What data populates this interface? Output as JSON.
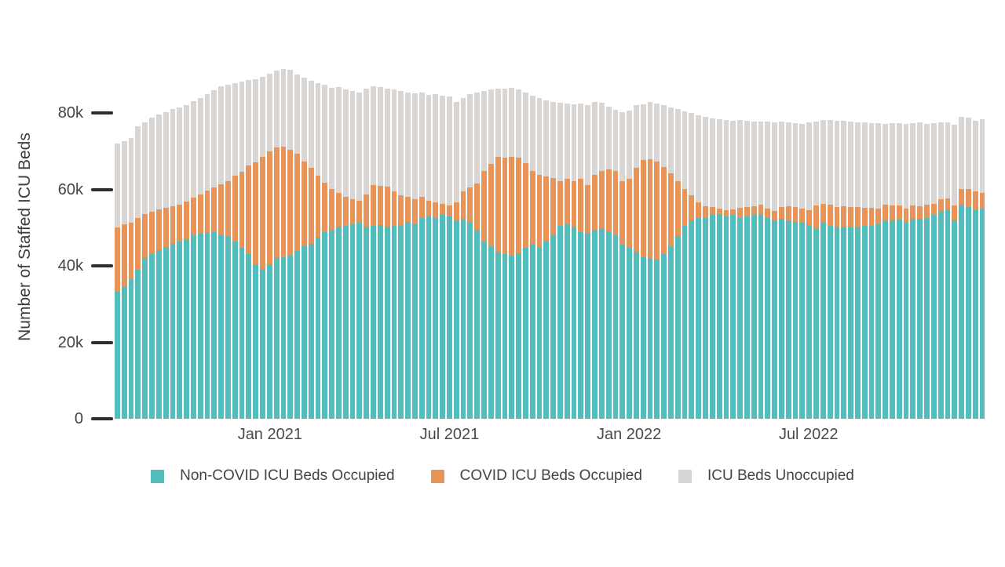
{
  "chart_data": {
    "type": "bar",
    "stacked": true,
    "title": "",
    "xlabel": "",
    "ylabel": "Number of Staffed ICU Beds",
    "units": "thousands of staffed ICU beds (values below are in thousands)",
    "ylim": [
      0,
      93
    ],
    "grid": false,
    "legend_position": "bottom",
    "x_start": "2020-08-02",
    "x_interval": "weekly",
    "n_points": 126,
    "yticks": [
      {
        "value": 0,
        "label": "0"
      },
      {
        "value": 20,
        "label": "20k"
      },
      {
        "value": 40,
        "label": "40k"
      },
      {
        "value": 60,
        "label": "60k"
      },
      {
        "value": 80,
        "label": "80k"
      }
    ],
    "xticks": [
      {
        "index": 22,
        "label": "Jan 2021"
      },
      {
        "index": 48,
        "label": "Jul 2021"
      },
      {
        "index": 74,
        "label": "Jan 2022"
      },
      {
        "index": 100,
        "label": "Jul 2022"
      }
    ],
    "series": [
      {
        "name": "Non-COVID ICU Beds Occupied",
        "color": "#53bdbe",
        "values": [
          33.3,
          34.5,
          36.5,
          39.0,
          42.0,
          43.0,
          44.2,
          45.0,
          45.7,
          46.3,
          47.0,
          48.0,
          48.4,
          48.6,
          48.8,
          48.3,
          47.8,
          46.4,
          44.7,
          43.0,
          40.5,
          39.2,
          40.5,
          42.0,
          42.3,
          42.6,
          44.0,
          45.1,
          45.7,
          47.4,
          48.8,
          49.5,
          50.2,
          50.5,
          50.9,
          51.2,
          50.2,
          50.5,
          50.6,
          50.2,
          50.5,
          50.6,
          51.5,
          50.8,
          52.5,
          52.9,
          52.5,
          53.3,
          52.9,
          52.0,
          52.3,
          51.2,
          49.5,
          46.4,
          45.1,
          43.7,
          43.0,
          42.6,
          43.3,
          44.7,
          45.7,
          44.9,
          46.5,
          48.2,
          50.5,
          50.9,
          50.2,
          48.8,
          48.4,
          49.5,
          49.8,
          49.1,
          48.1,
          45.7,
          44.7,
          43.7,
          42.3,
          42.0,
          41.6,
          43.0,
          45.1,
          47.8,
          50.5,
          51.9,
          52.5,
          52.6,
          53.3,
          53.5,
          52.9,
          53.3,
          52.5,
          52.9,
          53.3,
          53.5,
          52.5,
          51.9,
          52.3,
          51.9,
          51.5,
          51.2,
          50.6,
          49.8,
          51.5,
          50.5,
          50.2,
          50.3,
          50.0,
          50.2,
          50.4,
          50.5,
          50.9,
          51.9,
          52.0,
          52.1,
          51.5,
          52.4,
          52.3,
          52.5,
          53.3,
          54.3,
          54.6,
          52.0,
          56.1,
          55.3,
          54.6,
          55.0
        ]
      },
      {
        "name": "COVID ICU Beds Occupied",
        "color": "#e89357",
        "values": [
          16.7,
          16.3,
          14.7,
          13.5,
          11.6,
          11.2,
          10.5,
          10.2,
          9.9,
          9.7,
          9.9,
          9.9,
          10.3,
          11.1,
          11.8,
          13.0,
          14.3,
          17.1,
          19.9,
          23.3,
          26.5,
          29.3,
          29.5,
          29.0,
          28.9,
          27.7,
          25.3,
          22.1,
          19.9,
          16.2,
          13.0,
          10.6,
          8.9,
          7.5,
          6.5,
          5.8,
          8.5,
          10.6,
          10.3,
          10.5,
          8.9,
          7.8,
          6.5,
          6.6,
          5.5,
          4.1,
          4.1,
          2.9,
          2.9,
          4.6,
          7.1,
          9.3,
          12.0,
          18.5,
          21.5,
          24.9,
          25.3,
          26.0,
          25.1,
          22.2,
          19.2,
          18.9,
          16.9,
          14.8,
          11.6,
          11.9,
          11.9,
          14.0,
          12.7,
          14.3,
          15.1,
          16.1,
          16.8,
          16.4,
          18.1,
          21.9,
          25.3,
          25.9,
          25.6,
          22.9,
          19.1,
          14.3,
          9.6,
          6.5,
          4.1,
          3.0,
          2.0,
          1.4,
          1.6,
          1.4,
          2.6,
          2.5,
          2.3,
          2.5,
          2.4,
          2.4,
          3.0,
          3.7,
          3.8,
          3.7,
          3.9,
          6.1,
          4.8,
          5.5,
          5.2,
          5.3,
          5.3,
          5.1,
          4.8,
          4.6,
          4.0,
          4.1,
          3.9,
          3.7,
          3.4,
          3.4,
          3.3,
          3.5,
          2.9,
          3.1,
          3.1,
          3.8,
          4.1,
          4.9,
          4.9,
          4.0
        ]
      },
      {
        "name": "ICU Beds Unoccupied",
        "color": "#d9d5d2",
        "values": [
          22.0,
          21.9,
          22.3,
          24.0,
          23.9,
          24.6,
          24.8,
          25.0,
          25.4,
          25.4,
          25.1,
          25.1,
          25.3,
          25.3,
          25.4,
          25.7,
          25.2,
          24.2,
          23.6,
          22.3,
          21.8,
          21.0,
          20.3,
          20.0,
          20.3,
          20.9,
          20.7,
          22.0,
          22.8,
          24.2,
          25.6,
          26.4,
          27.6,
          28.2,
          28.4,
          28.4,
          27.7,
          25.9,
          25.9,
          25.7,
          26.7,
          27.4,
          27.4,
          27.7,
          27.3,
          27.8,
          28.3,
          28.4,
          28.5,
          26.2,
          24.6,
          24.4,
          23.8,
          20.8,
          19.6,
          17.8,
          18.1,
          18.0,
          17.7,
          18.5,
          19.7,
          20.2,
          19.8,
          19.8,
          20.5,
          19.7,
          20.2,
          19.7,
          20.9,
          19.0,
          17.8,
          16.5,
          16.0,
          18.2,
          17.9,
          16.4,
          14.7,
          14.9,
          15.2,
          16.1,
          17.3,
          18.9,
          20.3,
          21.6,
          22.7,
          23.3,
          23.3,
          23.4,
          23.6,
          23.3,
          23.0,
          22.6,
          22.2,
          21.7,
          22.8,
          23.2,
          22.4,
          21.9,
          22.1,
          22.3,
          23.0,
          21.9,
          21.8,
          22.1,
          22.5,
          22.4,
          22.5,
          22.3,
          22.3,
          22.3,
          22.4,
          21.2,
          21.4,
          21.5,
          22.2,
          21.5,
          21.9,
          21.2,
          21.1,
          20.1,
          19.8,
          21.2,
          18.8,
          18.6,
          18.5,
          19.3
        ]
      }
    ]
  },
  "colors": {
    "background": "#ffffff",
    "axis_text": "#444444",
    "tick_mark": "#2f2f2f"
  }
}
